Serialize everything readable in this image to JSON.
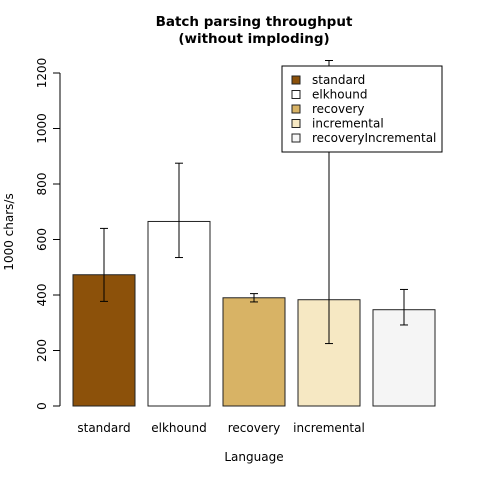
{
  "chart_data": {
    "type": "bar",
    "title_lines": [
      "Batch parsing throughput",
      "(without imploding)"
    ],
    "xlabel": "Language",
    "ylabel": "1000 chars/s",
    "ylim": [
      0,
      1200
    ],
    "yticks": [
      0,
      200,
      400,
      600,
      800,
      1000,
      1200
    ],
    "categories": [
      "standard",
      "elkhound",
      "recovery",
      "incremental",
      ""
    ],
    "values": [
      473,
      665,
      390,
      383,
      347
    ],
    "error_low": [
      377,
      535,
      375,
      225,
      292
    ],
    "error_high": [
      640,
      875,
      405,
      1245,
      420
    ],
    "bar_colors": [
      "#8c510a",
      "#ffffff",
      "#d8b365",
      "#f6e8c3",
      "#f5f5f5"
    ],
    "legend": {
      "placement": "top-right",
      "entries": [
        "standard",
        "elkhound",
        "recovery",
        "incremental",
        "recoveryIncremental"
      ]
    },
    "grid": false
  }
}
